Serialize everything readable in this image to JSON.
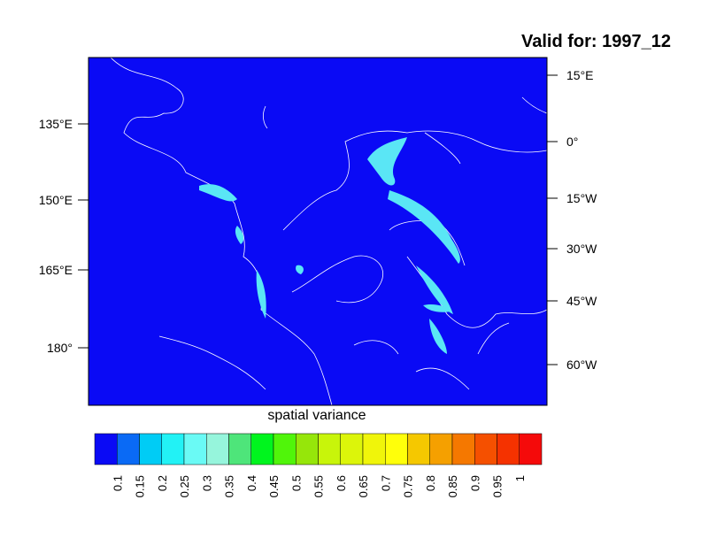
{
  "title": "Valid for: 1997_12",
  "map": {
    "left_labels": [
      "135°E",
      "150°E",
      "165°E",
      "180°"
    ],
    "right_labels": [
      "15°E",
      "0°",
      "15°W",
      "30°W",
      "45°W",
      "60°W"
    ]
  },
  "colorbar": {
    "label": "spatial variance",
    "levels": [
      0.1,
      0.15,
      0.2,
      0.25,
      0.3,
      0.35,
      0.4,
      0.45,
      0.5,
      0.55,
      0.6,
      0.65,
      0.7,
      0.75,
      0.8,
      0.85,
      0.9,
      0.95,
      1
    ],
    "colors": [
      "#0a0af5",
      "#0a6af5",
      "#00ccf5",
      "#22f2f5",
      "#6afaf5",
      "#96f5dc",
      "#4ee57a",
      "#00f51e",
      "#50f50a",
      "#96e60a",
      "#c8f50a",
      "#dcf50a",
      "#f0f50a",
      "#ffff0a",
      "#f5c800",
      "#f5a000",
      "#f57800",
      "#f55000",
      "#f53200",
      "#f50a0a"
    ]
  }
}
